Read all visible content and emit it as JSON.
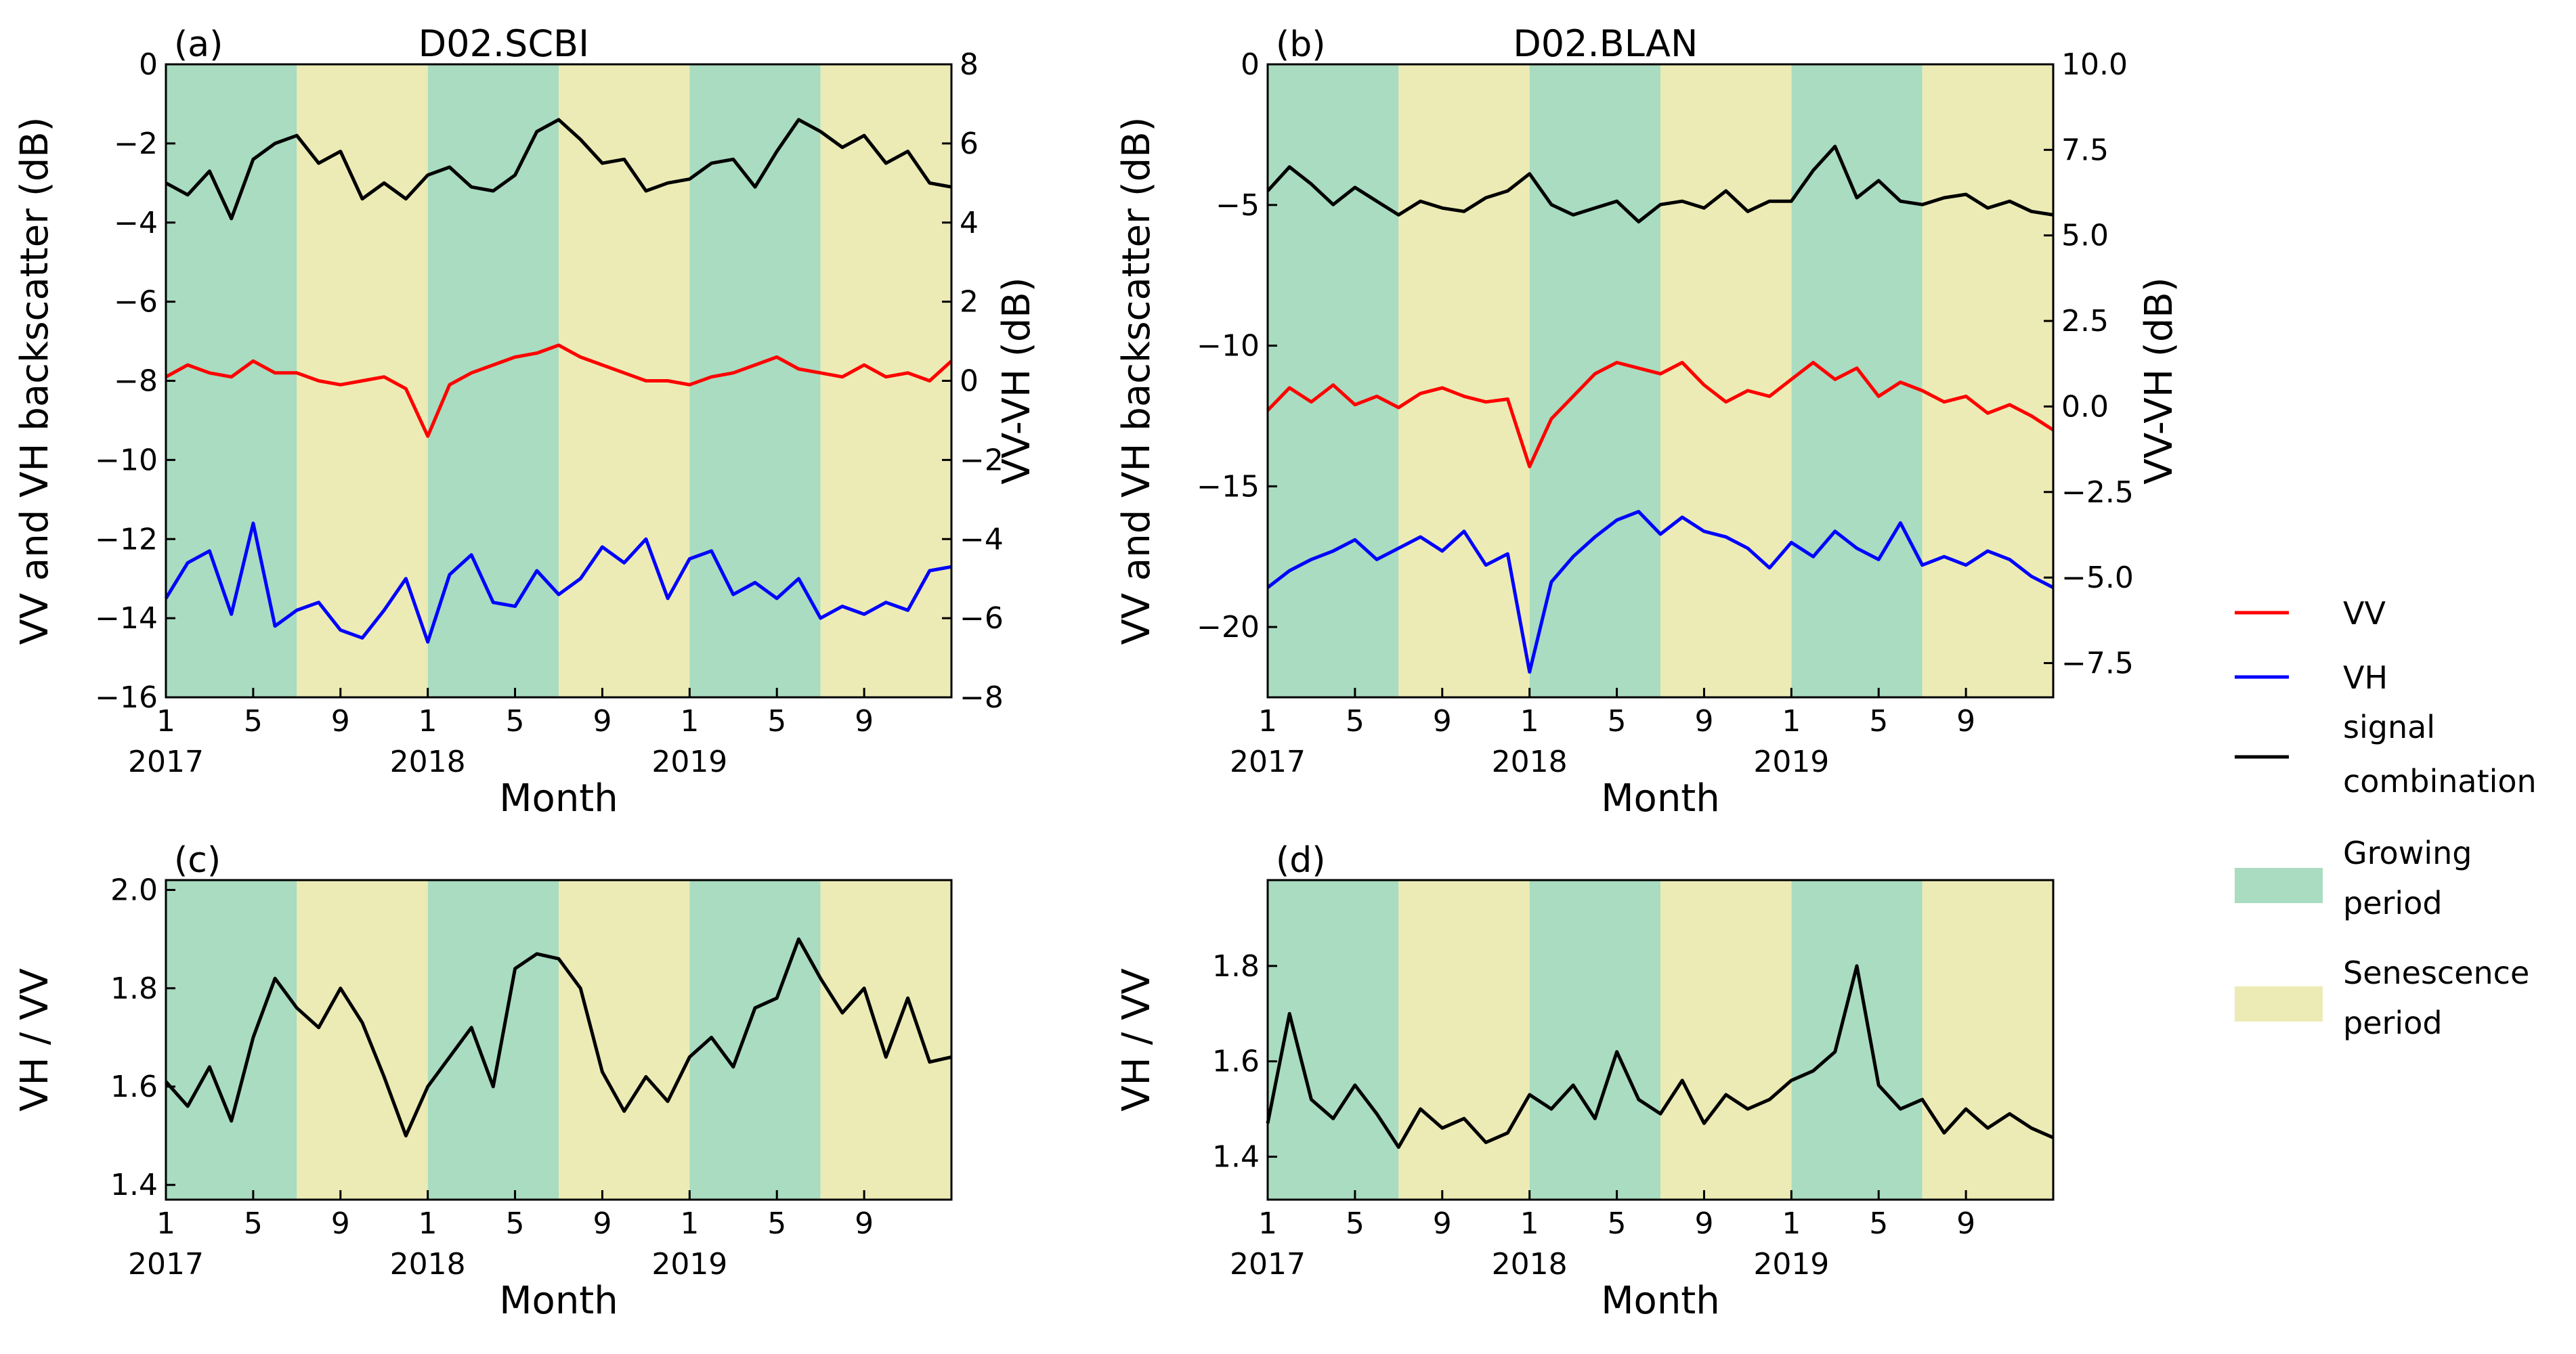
{
  "figure": {
    "shading": {
      "growing_color": "#a9dcc0",
      "senescence_color": "#ecebb5"
    },
    "x_axis": {
      "month_ticks": [
        "1",
        "5",
        "9",
        "1",
        "5",
        "9",
        "1",
        "5",
        "9"
      ],
      "month_tick_positions": [
        0,
        4,
        8,
        12,
        16,
        20,
        24,
        28,
        32
      ],
      "year_labels": [
        "2017",
        "2018",
        "2019"
      ],
      "xlabel": "Month",
      "xlim_months": [
        0,
        36
      ],
      "growing_periods": [
        [
          0,
          6
        ],
        [
          12,
          18
        ],
        [
          24,
          30
        ]
      ],
      "senescence_periods": [
        [
          6,
          12
        ],
        [
          18,
          24
        ],
        [
          30,
          36
        ]
      ]
    },
    "legend": {
      "vv": {
        "label": "VV",
        "color": "#ff0000"
      },
      "vh": {
        "label": "VH",
        "color": "#0000ff"
      },
      "combo": {
        "line1": "signal",
        "line2": "combination",
        "color": "#000000"
      },
      "growing": {
        "line1": "Growing",
        "line2": "period"
      },
      "senescence": {
        "line1": "Senescence",
        "line2": "period"
      }
    }
  },
  "chart_data": [
    {
      "id": "a",
      "panel_label": "(a)",
      "title": "D02.SCBI",
      "type": "line",
      "ylabel": "VV and VH backscatter (dB)",
      "ylim": [
        -16,
        0
      ],
      "yticks": [
        0,
        -2,
        -4,
        -6,
        -8,
        -10,
        -12,
        -14,
        -16
      ],
      "ytick_labels": [
        "0",
        "−2",
        "−4",
        "−6",
        "−8",
        "−10",
        "−12",
        "−14",
        "−16"
      ],
      "ylabel_right": "VV-VH (dB)",
      "ylim_right": [
        -8,
        8
      ],
      "yticks_right": [
        8,
        6,
        4,
        2,
        0,
        -2,
        -4,
        -6,
        -8
      ],
      "ytick_labels_right": [
        "8",
        "6",
        "4",
        "2",
        "0",
        "−2",
        "−4",
        "−6",
        "−8"
      ],
      "xlabel": "Month",
      "series": [
        {
          "name": "VV",
          "axis": "left",
          "color": "#ff0000",
          "x": [
            0,
            1,
            2,
            3,
            4,
            5,
            6,
            7,
            8,
            9,
            10,
            11,
            12,
            13,
            14,
            15,
            16,
            17,
            18,
            19,
            20,
            21,
            22,
            23,
            24,
            25,
            26,
            27,
            28,
            29,
            30,
            31,
            32,
            33,
            34,
            35,
            36
          ],
          "values": [
            -7.9,
            -7.6,
            -7.8,
            -7.9,
            -7.5,
            -7.8,
            -7.8,
            -8.0,
            -8.1,
            -8.0,
            -7.9,
            -8.2,
            -9.4,
            -8.1,
            -7.8,
            -7.6,
            -7.4,
            -7.3,
            -7.1,
            -7.4,
            -7.6,
            -7.8,
            -8.0,
            -8.0,
            -8.1,
            -7.9,
            -7.8,
            -7.6,
            -7.4,
            -7.7,
            -7.8,
            -7.9,
            -7.6,
            -7.9,
            -7.8,
            -8.0,
            -7.5
          ]
        },
        {
          "name": "VH",
          "axis": "left",
          "color": "#0000ff",
          "x": [
            0,
            1,
            2,
            3,
            4,
            5,
            6,
            7,
            8,
            9,
            10,
            11,
            12,
            13,
            14,
            15,
            16,
            17,
            18,
            19,
            20,
            21,
            22,
            23,
            24,
            25,
            26,
            27,
            28,
            29,
            30,
            31,
            32,
            33,
            34,
            35,
            36
          ],
          "values": [
            -13.5,
            -12.6,
            -12.3,
            -13.9,
            -11.6,
            -14.2,
            -13.8,
            -13.6,
            -14.3,
            -14.5,
            -13.8,
            -13.0,
            -14.6,
            -12.9,
            -12.4,
            -13.6,
            -13.7,
            -12.8,
            -13.4,
            -13.0,
            -12.2,
            -12.6,
            -12.0,
            -13.5,
            -12.5,
            -12.3,
            -13.4,
            -13.1,
            -13.5,
            -13.0,
            -14.0,
            -13.7,
            -13.9,
            -13.6,
            -13.8,
            -12.8,
            -12.7
          ]
        },
        {
          "name": "signal combination",
          "axis": "right",
          "color": "#000000",
          "x": [
            0,
            1,
            2,
            3,
            4,
            5,
            6,
            7,
            8,
            9,
            10,
            11,
            12,
            13,
            14,
            15,
            16,
            17,
            18,
            19,
            20,
            21,
            22,
            23,
            24,
            25,
            26,
            27,
            28,
            29,
            30,
            31,
            32,
            33,
            34,
            35,
            36
          ],
          "values": [
            5.0,
            4.7,
            5.3,
            4.1,
            5.6,
            6.0,
            6.2,
            5.5,
            5.8,
            4.6,
            5.0,
            4.6,
            5.2,
            5.4,
            4.9,
            4.8,
            5.2,
            6.3,
            6.6,
            6.1,
            5.5,
            5.6,
            4.8,
            5.0,
            5.1,
            5.5,
            5.6,
            4.9,
            5.8,
            6.6,
            6.3,
            5.9,
            6.2,
            5.5,
            5.8,
            5.0,
            4.9
          ]
        }
      ]
    },
    {
      "id": "b",
      "panel_label": "(b)",
      "title": "D02.BLAN",
      "type": "line",
      "ylabel": "VV and VH backscatter (dB)",
      "ylim": [
        -22.5,
        0
      ],
      "yticks": [
        0,
        -5,
        -10,
        -15,
        -20
      ],
      "ytick_labels": [
        "0",
        "−5",
        "−10",
        "−15",
        "−20"
      ],
      "ylabel_right": "VV-VH (dB)",
      "ylim_right": [
        -8.5,
        10
      ],
      "yticks_right": [
        10,
        7.5,
        5,
        2.5,
        0,
        -2.5,
        -5,
        -7.5
      ],
      "ytick_labels_right": [
        "10.0",
        "7.5",
        "5.0",
        "2.5",
        "0.0",
        "−2.5",
        "−5.0",
        "−7.5"
      ],
      "xlabel": "Month",
      "series": [
        {
          "name": "VV",
          "axis": "left",
          "color": "#ff0000",
          "x": [
            0,
            1,
            2,
            3,
            4,
            5,
            6,
            7,
            8,
            9,
            10,
            11,
            12,
            13,
            14,
            15,
            16,
            17,
            18,
            19,
            20,
            21,
            22,
            23,
            24,
            25,
            26,
            27,
            28,
            29,
            30,
            31,
            32,
            33,
            34,
            35,
            36
          ],
          "values": [
            -12.3,
            -11.5,
            -12.0,
            -11.4,
            -12.1,
            -11.8,
            -12.2,
            -11.7,
            -11.5,
            -11.8,
            -12.0,
            -11.9,
            -14.3,
            -12.6,
            -11.8,
            -11.0,
            -10.6,
            -10.8,
            -11.0,
            -10.6,
            -11.4,
            -12.0,
            -11.6,
            -11.8,
            -11.2,
            -10.6,
            -11.2,
            -10.8,
            -11.8,
            -11.3,
            -11.6,
            -12.0,
            -11.8,
            -12.4,
            -12.1,
            -12.5,
            -13.0
          ]
        },
        {
          "name": "VH",
          "axis": "left",
          "color": "#0000ff",
          "x": [
            0,
            1,
            2,
            3,
            4,
            5,
            6,
            7,
            8,
            9,
            10,
            11,
            12,
            13,
            14,
            15,
            16,
            17,
            18,
            19,
            20,
            21,
            22,
            23,
            24,
            25,
            26,
            27,
            28,
            29,
            30,
            31,
            32,
            33,
            34,
            35,
            36
          ],
          "values": [
            -18.6,
            -18.0,
            -17.6,
            -17.3,
            -16.9,
            -17.6,
            -17.2,
            -16.8,
            -17.3,
            -16.6,
            -17.8,
            -17.4,
            -21.6,
            -18.4,
            -17.5,
            -16.8,
            -16.2,
            -15.9,
            -16.7,
            -16.1,
            -16.6,
            -16.8,
            -17.2,
            -17.9,
            -17.0,
            -17.5,
            -16.6,
            -17.2,
            -17.6,
            -16.3,
            -17.8,
            -17.5,
            -17.8,
            -17.3,
            -17.6,
            -18.2,
            -18.6
          ]
        },
        {
          "name": "signal combination",
          "axis": "right",
          "color": "#000000",
          "x": [
            0,
            1,
            2,
            3,
            4,
            5,
            6,
            7,
            8,
            9,
            10,
            11,
            12,
            13,
            14,
            15,
            16,
            17,
            18,
            19,
            20,
            21,
            22,
            23,
            24,
            25,
            26,
            27,
            28,
            29,
            30,
            31,
            32,
            33,
            34,
            35,
            36
          ],
          "values": [
            6.3,
            7.0,
            6.5,
            5.9,
            6.4,
            6.0,
            5.6,
            6.0,
            5.8,
            5.7,
            6.1,
            6.3,
            6.8,
            5.9,
            5.6,
            5.8,
            6.0,
            5.4,
            5.9,
            6.0,
            5.8,
            6.3,
            5.7,
            6.0,
            6.0,
            6.9,
            7.6,
            6.1,
            6.6,
            6.0,
            5.9,
            6.1,
            6.2,
            5.8,
            6.0,
            5.7,
            5.6
          ]
        }
      ]
    },
    {
      "id": "c",
      "panel_label": "(c)",
      "type": "line",
      "ylabel": "VH / VV",
      "ylim": [
        1.37,
        2.02
      ],
      "yticks": [
        1.4,
        1.6,
        1.8,
        2.0
      ],
      "ytick_labels": [
        "1.4",
        "1.6",
        "1.8",
        "2.0"
      ],
      "xlabel": "Month",
      "series": [
        {
          "name": "VH / VV",
          "color": "#000000",
          "x": [
            0,
            1,
            2,
            3,
            4,
            5,
            6,
            7,
            8,
            9,
            10,
            11,
            12,
            13,
            14,
            15,
            16,
            17,
            18,
            19,
            20,
            21,
            22,
            23,
            24,
            25,
            26,
            27,
            28,
            29,
            30,
            31,
            32,
            33,
            34,
            35,
            36
          ],
          "values": [
            1.61,
            1.56,
            1.64,
            1.53,
            1.7,
            1.82,
            1.76,
            1.72,
            1.8,
            1.73,
            1.62,
            1.5,
            1.6,
            1.66,
            1.72,
            1.6,
            1.84,
            1.87,
            1.86,
            1.8,
            1.63,
            1.55,
            1.62,
            1.57,
            1.66,
            1.7,
            1.64,
            1.76,
            1.78,
            1.9,
            1.82,
            1.75,
            1.8,
            1.66,
            1.78,
            1.65,
            1.66
          ]
        }
      ]
    },
    {
      "id": "d",
      "panel_label": "(d)",
      "type": "line",
      "ylabel": "VH / VV",
      "ylim": [
        1.31,
        1.98
      ],
      "yticks": [
        1.4,
        1.6,
        1.8
      ],
      "ytick_labels": [
        "1.4",
        "1.6",
        "1.8"
      ],
      "xlabel": "Month",
      "series": [
        {
          "name": "VH / VV",
          "color": "#000000",
          "x": [
            0,
            1,
            2,
            3,
            4,
            5,
            6,
            7,
            8,
            9,
            10,
            11,
            12,
            13,
            14,
            15,
            16,
            17,
            18,
            19,
            20,
            21,
            22,
            23,
            24,
            25,
            26,
            27,
            28,
            29,
            30,
            31,
            32,
            33,
            34,
            35,
            36
          ],
          "values": [
            1.47,
            1.7,
            1.52,
            1.48,
            1.55,
            1.49,
            1.42,
            1.5,
            1.46,
            1.48,
            1.43,
            1.45,
            1.53,
            1.5,
            1.55,
            1.48,
            1.62,
            1.52,
            1.49,
            1.56,
            1.47,
            1.53,
            1.5,
            1.52,
            1.56,
            1.58,
            1.62,
            1.8,
            1.55,
            1.5,
            1.52,
            1.45,
            1.5,
            1.46,
            1.49,
            1.46,
            1.44
          ]
        }
      ]
    }
  ]
}
